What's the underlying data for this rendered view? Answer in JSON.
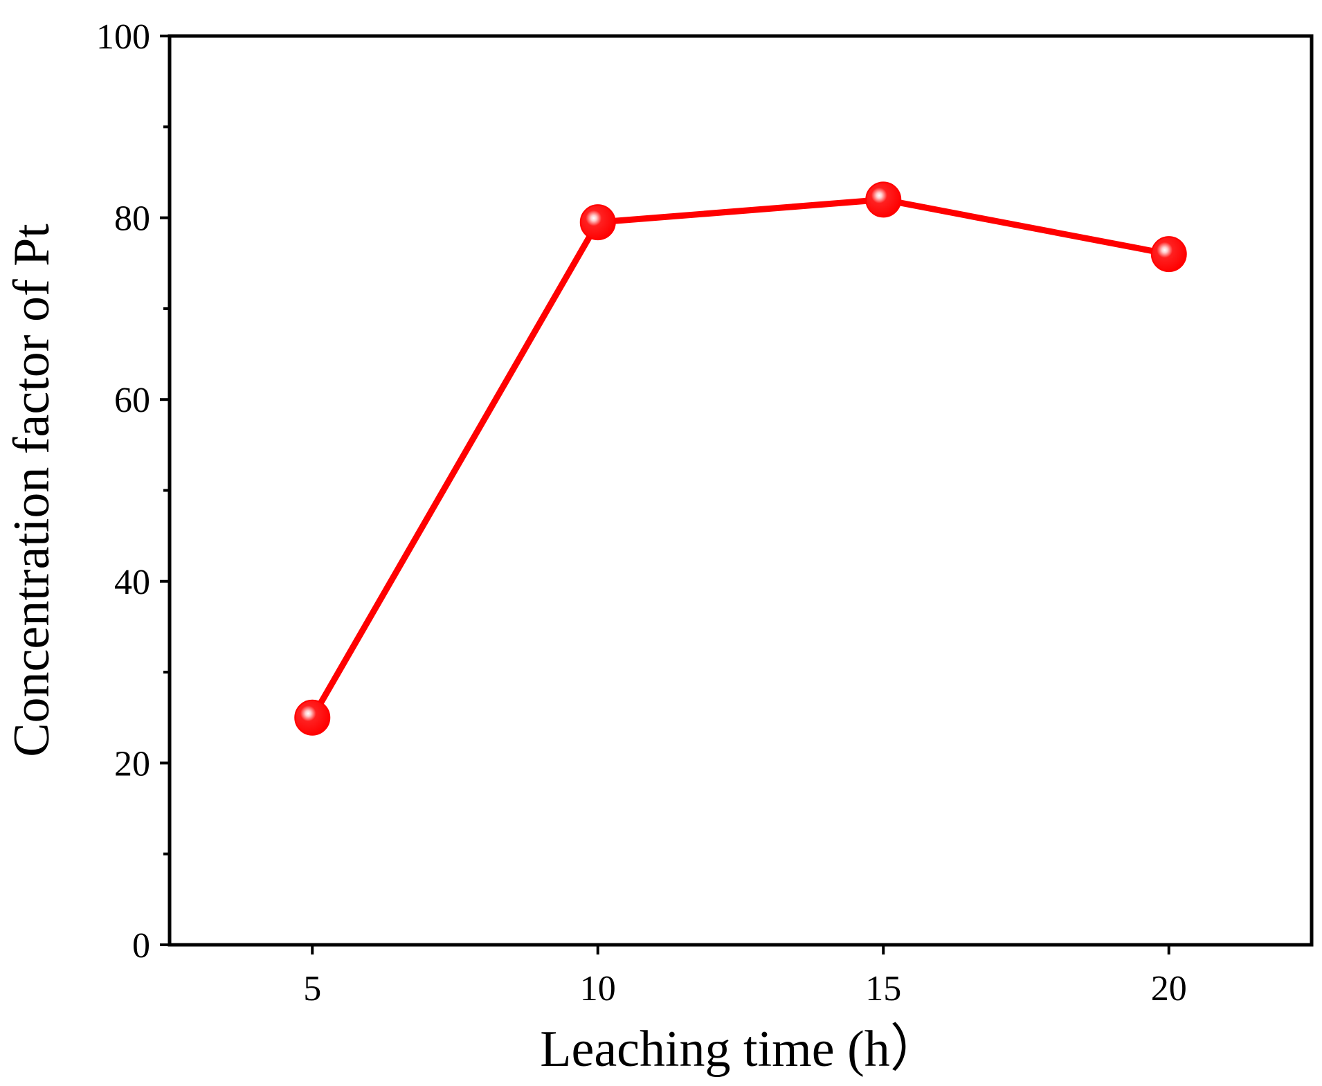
{
  "chart_data": {
    "type": "line",
    "title": "",
    "xlabel": "Leaching time (h）",
    "ylabel": "Concentration factor of Pt",
    "xlim": [
      2.5,
      22.5
    ],
    "ylim": [
      0,
      100
    ],
    "x_ticks": [
      5,
      10,
      15,
      20
    ],
    "x_tick_labels": [
      "5",
      "10",
      "15",
      "20"
    ],
    "y_ticks": [
      0,
      20,
      40,
      60,
      80,
      100
    ],
    "y_tick_labels": [
      "0",
      "20",
      "40",
      "60",
      "80",
      "100"
    ],
    "y_minor_ticks": [
      10,
      30,
      50,
      70,
      90
    ],
    "grid": false,
    "legend": "none",
    "series": [
      {
        "color": "#ff0000",
        "marker": "sphere",
        "x": [
          5,
          10,
          15,
          20
        ],
        "y": [
          25,
          79.5,
          82,
          76
        ]
      }
    ]
  }
}
